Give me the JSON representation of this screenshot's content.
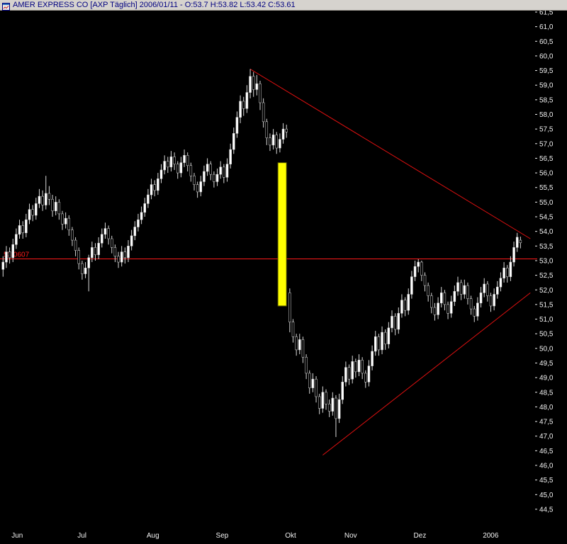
{
  "window": {
    "title": "AMER EXPRESS CO [AXP  Täglich] 2006/01/11 - O:53.7 H:53.82 L:53.42 C:53.61",
    "icon": "chart-window-icon"
  },
  "chart_data": {
    "type": "candlestick",
    "title": "AMER EXPRESS CO [AXP  Täglich] 2006/01/11 - O:53.7 H:53.82 L:53.42 C:53.61",
    "instrument": {
      "name": "AMER EXPRESS CO",
      "symbol": "AXP",
      "period": "Täglich",
      "date": "2006/01/11",
      "open": 53.7,
      "high": 53.82,
      "low": 53.42,
      "close": 53.61
    },
    "colors": {
      "background": "#000000",
      "up": "#ffffff",
      "down": "#000000",
      "wick": "#d9d9d9",
      "trend": "#e01010",
      "level": "#ff1a1a",
      "highlight": "#ffff00",
      "axis_text": "#f2f2f2"
    },
    "y_axis": {
      "max_tick": 61.5,
      "min_tick": 44.5,
      "step": 0.5,
      "labels": [
        "61,5",
        "61,0",
        "60,5",
        "60,0",
        "59,5",
        "59,0",
        "58,5",
        "58,0",
        "57,5",
        "57,0",
        "56,5",
        "56,0",
        "55,5",
        "55,0",
        "54,5",
        "54,0",
        "53,5",
        "53,0",
        "52,5",
        "52,0",
        "51,5",
        "51,0",
        "50,5",
        "50,0",
        "49,5",
        "49,0",
        "48,5",
        "48,0",
        "47,5",
        "47,0",
        "46,5",
        "46,0",
        "45,5",
        "45,0",
        "44,5"
      ]
    },
    "x_labels": [
      {
        "label": "Jun",
        "day": 3
      },
      {
        "label": "Jul",
        "day": 23
      },
      {
        "label": "Aug",
        "day": 44
      },
      {
        "label": "Sep",
        "day": 65
      },
      {
        "label": "Okt",
        "day": 86
      },
      {
        "label": "Nov",
        "day": 104
      },
      {
        "label": "Dez",
        "day": 125
      },
      {
        "label": "2006",
        "day": 146
      }
    ],
    "level_line": {
      "price": 53.0607,
      "label": "53.0607"
    },
    "trendlines": [
      {
        "name": "descending-resistance",
        "from": {
          "day": 75,
          "price": 59.55
        },
        "to": {
          "day": 160,
          "price": 53.75
        }
      },
      {
        "name": "ascending-support",
        "from": {
          "day": 97,
          "price": 46.35
        },
        "to": {
          "day": 160,
          "price": 51.9
        }
      }
    ],
    "highlight_box": {
      "day_from": 83.4,
      "day_to": 86.0,
      "price_top": 56.35,
      "price_bottom": 51.45
    },
    "candles": [
      [
        52.7,
        53.15,
        52.45,
        52.95
      ],
      [
        52.95,
        53.5,
        52.75,
        53.3
      ],
      [
        53.3,
        53.45,
        52.9,
        53.1
      ],
      [
        53.1,
        53.75,
        52.95,
        53.55
      ],
      [
        53.55,
        54.1,
        53.4,
        53.9
      ],
      [
        53.9,
        54.4,
        53.75,
        54.2
      ],
      [
        54.2,
        54.35,
        53.75,
        53.95
      ],
      [
        53.95,
        54.6,
        53.8,
        54.4
      ],
      [
        54.4,
        54.95,
        54.25,
        54.75
      ],
      [
        54.75,
        54.9,
        54.35,
        54.55
      ],
      [
        54.55,
        55.15,
        54.4,
        54.95
      ],
      [
        54.95,
        55.45,
        54.8,
        55.2
      ],
      [
        55.2,
        55.4,
        54.7,
        54.9
      ],
      [
        54.9,
        55.9,
        54.75,
        55.3
      ],
      [
        55.3,
        55.55,
        54.9,
        55.1
      ],
      [
        55.1,
        55.25,
        54.5,
        54.7
      ],
      [
        54.7,
        55.2,
        54.55,
        55.0
      ],
      [
        55.0,
        55.1,
        54.4,
        54.6
      ],
      [
        54.6,
        54.7,
        54.05,
        54.25
      ],
      [
        54.25,
        54.65,
        54.1,
        54.45
      ],
      [
        54.45,
        54.55,
        53.85,
        54.05
      ],
      [
        54.05,
        54.15,
        53.5,
        53.7
      ],
      [
        53.7,
        53.8,
        53.15,
        53.35
      ],
      [
        53.35,
        53.45,
        52.7,
        52.9
      ],
      [
        52.9,
        53.0,
        52.35,
        52.55
      ],
      [
        52.55,
        52.95,
        52.4,
        52.75
      ],
      [
        52.75,
        53.2,
        51.95,
        53.1
      ],
      [
        53.1,
        53.65,
        52.95,
        53.45
      ],
      [
        53.45,
        53.6,
        53.0,
        53.2
      ],
      [
        53.2,
        53.8,
        53.05,
        53.6
      ],
      [
        53.6,
        54.1,
        53.45,
        53.9
      ],
      [
        53.9,
        54.3,
        53.75,
        54.1
      ],
      [
        54.1,
        54.2,
        53.55,
        53.75
      ],
      [
        53.75,
        53.85,
        53.25,
        53.45
      ],
      [
        53.45,
        53.55,
        52.95,
        53.15
      ],
      [
        53.15,
        53.3,
        52.75,
        52.95
      ],
      [
        52.95,
        53.5,
        52.8,
        53.3
      ],
      [
        53.3,
        53.45,
        52.9,
        53.1
      ],
      [
        53.1,
        53.7,
        52.95,
        53.5
      ],
      [
        53.5,
        54.05,
        53.35,
        53.85
      ],
      [
        53.85,
        54.35,
        53.7,
        54.15
      ],
      [
        54.15,
        54.6,
        54.0,
        54.4
      ],
      [
        54.4,
        54.85,
        54.25,
        54.65
      ],
      [
        54.65,
        55.15,
        54.5,
        54.95
      ],
      [
        54.95,
        55.45,
        54.8,
        55.25
      ],
      [
        55.25,
        55.8,
        55.1,
        55.6
      ],
      [
        55.6,
        55.75,
        55.2,
        55.4
      ],
      [
        55.4,
        56.0,
        55.25,
        55.8
      ],
      [
        55.8,
        56.3,
        55.65,
        56.1
      ],
      [
        56.1,
        56.6,
        55.95,
        56.4
      ],
      [
        56.4,
        56.55,
        56.0,
        56.2
      ],
      [
        56.2,
        56.75,
        56.05,
        56.55
      ],
      [
        56.55,
        56.7,
        56.1,
        56.3
      ],
      [
        56.3,
        56.4,
        55.8,
        56.0
      ],
      [
        56.0,
        56.55,
        55.85,
        56.35
      ],
      [
        56.35,
        56.8,
        56.2,
        56.6
      ],
      [
        56.6,
        56.7,
        56.05,
        56.25
      ],
      [
        56.25,
        56.35,
        55.7,
        55.9
      ],
      [
        55.9,
        56.0,
        55.4,
        55.6
      ],
      [
        55.6,
        55.7,
        55.15,
        55.35
      ],
      [
        55.35,
        55.9,
        55.2,
        55.7
      ],
      [
        55.7,
        56.25,
        55.55,
        56.05
      ],
      [
        56.05,
        56.5,
        55.9,
        56.3
      ],
      [
        56.3,
        56.4,
        55.75,
        55.95
      ],
      [
        55.95,
        56.05,
        55.5,
        55.7
      ],
      [
        55.7,
        56.15,
        55.55,
        55.95
      ],
      [
        55.95,
        56.4,
        55.8,
        56.2
      ],
      [
        56.2,
        56.3,
        55.65,
        55.85
      ],
      [
        55.85,
        56.5,
        55.7,
        56.3
      ],
      [
        56.3,
        57.0,
        56.15,
        56.8
      ],
      [
        56.8,
        57.55,
        56.65,
        57.35
      ],
      [
        57.35,
        58.1,
        57.2,
        57.9
      ],
      [
        57.9,
        58.65,
        57.7,
        58.45
      ],
      [
        58.45,
        58.6,
        57.95,
        58.2
      ],
      [
        58.2,
        59.0,
        58.05,
        58.75
      ],
      [
        58.75,
        59.55,
        58.55,
        59.3
      ],
      [
        59.3,
        59.45,
        58.6,
        58.85
      ],
      [
        58.85,
        59.35,
        58.65,
        59.05
      ],
      [
        59.05,
        59.15,
        58.15,
        58.4
      ],
      [
        58.4,
        58.55,
        57.55,
        57.75
      ],
      [
        57.75,
        57.85,
        56.95,
        57.2
      ],
      [
        57.2,
        57.35,
        56.75,
        56.95
      ],
      [
        56.95,
        57.5,
        56.8,
        57.3
      ],
      [
        57.3,
        57.4,
        56.65,
        56.85
      ],
      [
        56.85,
        57.35,
        56.7,
        57.15
      ],
      [
        57.15,
        57.7,
        57.0,
        57.5
      ],
      [
        57.5,
        57.65,
        57.2,
        57.4
      ],
      [
        51.9,
        52.05,
        50.55,
        50.9
      ],
      [
        50.9,
        51.0,
        50.2,
        50.4
      ],
      [
        50.4,
        50.5,
        49.75,
        49.95
      ],
      [
        49.95,
        50.5,
        49.8,
        50.3
      ],
      [
        50.3,
        50.4,
        49.5,
        49.7
      ],
      [
        49.7,
        49.8,
        48.95,
        49.15
      ],
      [
        49.15,
        49.25,
        48.45,
        48.65
      ],
      [
        48.65,
        49.15,
        48.5,
        48.95
      ],
      [
        48.95,
        49.05,
        48.15,
        48.35
      ],
      [
        48.35,
        48.45,
        47.75,
        47.95
      ],
      [
        47.95,
        48.7,
        47.8,
        48.5
      ],
      [
        48.5,
        48.6,
        47.9,
        48.1
      ],
      [
        48.1,
        48.25,
        47.65,
        47.85
      ],
      [
        47.85,
        48.5,
        47.7,
        48.3
      ],
      [
        48.3,
        48.4,
        46.97,
        47.6
      ],
      [
        47.6,
        48.45,
        47.45,
        48.25
      ],
      [
        48.25,
        49.05,
        48.1,
        48.85
      ],
      [
        48.85,
        49.55,
        48.7,
        49.35
      ],
      [
        49.35,
        49.45,
        48.75,
        48.95
      ],
      [
        48.95,
        49.75,
        48.8,
        49.55
      ],
      [
        49.55,
        49.65,
        49.0,
        49.2
      ],
      [
        49.2,
        49.8,
        49.05,
        49.6
      ],
      [
        49.6,
        49.7,
        48.95,
        49.15
      ],
      [
        49.15,
        49.25,
        48.65,
        48.85
      ],
      [
        48.85,
        49.6,
        48.7,
        49.4
      ],
      [
        49.4,
        50.1,
        49.25,
        49.9
      ],
      [
        49.9,
        50.6,
        49.75,
        50.4
      ],
      [
        50.4,
        50.5,
        49.75,
        49.95
      ],
      [
        49.95,
        50.75,
        49.8,
        50.55
      ],
      [
        50.55,
        50.65,
        49.95,
        50.15
      ],
      [
        50.15,
        50.9,
        50.0,
        50.7
      ],
      [
        50.7,
        51.3,
        50.55,
        51.1
      ],
      [
        51.1,
        51.2,
        50.45,
        50.65
      ],
      [
        50.65,
        51.4,
        50.5,
        51.2
      ],
      [
        51.2,
        51.85,
        51.05,
        51.65
      ],
      [
        51.65,
        51.75,
        51.1,
        51.3
      ],
      [
        51.3,
        52.05,
        51.15,
        51.85
      ],
      [
        51.85,
        52.65,
        51.7,
        52.45
      ],
      [
        52.45,
        53.0,
        52.3,
        52.8
      ],
      [
        52.8,
        53.05,
        52.6,
        52.95
      ],
      [
        52.95,
        53.0,
        52.3,
        52.5
      ],
      [
        52.5,
        52.6,
        51.95,
        52.15
      ],
      [
        52.15,
        52.25,
        51.6,
        51.8
      ],
      [
        51.8,
        51.9,
        51.2,
        51.4
      ],
      [
        51.4,
        51.55,
        50.95,
        51.15
      ],
      [
        51.15,
        51.75,
        51.0,
        51.55
      ],
      [
        51.55,
        52.1,
        51.4,
        51.9
      ],
      [
        51.9,
        52.0,
        51.3,
        51.5
      ],
      [
        51.5,
        51.6,
        51.0,
        51.2
      ],
      [
        51.2,
        51.8,
        51.05,
        51.6
      ],
      [
        51.6,
        52.15,
        51.45,
        51.95
      ],
      [
        51.95,
        52.45,
        51.8,
        52.25
      ],
      [
        52.25,
        52.35,
        51.65,
        51.85
      ],
      [
        51.85,
        52.35,
        51.7,
        52.15
      ],
      [
        52.15,
        52.25,
        51.5,
        51.7
      ],
      [
        51.7,
        51.8,
        51.15,
        51.35
      ],
      [
        51.35,
        51.45,
        50.9,
        51.1
      ],
      [
        51.1,
        51.75,
        50.95,
        51.55
      ],
      [
        51.55,
        52.1,
        51.4,
        51.9
      ],
      [
        51.9,
        52.4,
        51.75,
        52.2
      ],
      [
        52.2,
        52.3,
        51.6,
        51.8
      ],
      [
        51.8,
        51.9,
        51.25,
        51.45
      ],
      [
        51.45,
        52.05,
        51.3,
        51.85
      ],
      [
        51.85,
        52.3,
        51.7,
        52.1
      ],
      [
        52.1,
        52.6,
        51.95,
        52.4
      ],
      [
        52.4,
        52.95,
        52.25,
        52.75
      ],
      [
        52.75,
        52.85,
        52.25,
        52.45
      ],
      [
        52.45,
        53.15,
        52.3,
        52.95
      ],
      [
        52.95,
        53.65,
        52.8,
        53.45
      ],
      [
        53.45,
        53.95,
        53.3,
        53.8
      ],
      [
        53.7,
        53.82,
        53.42,
        53.61
      ]
    ]
  }
}
